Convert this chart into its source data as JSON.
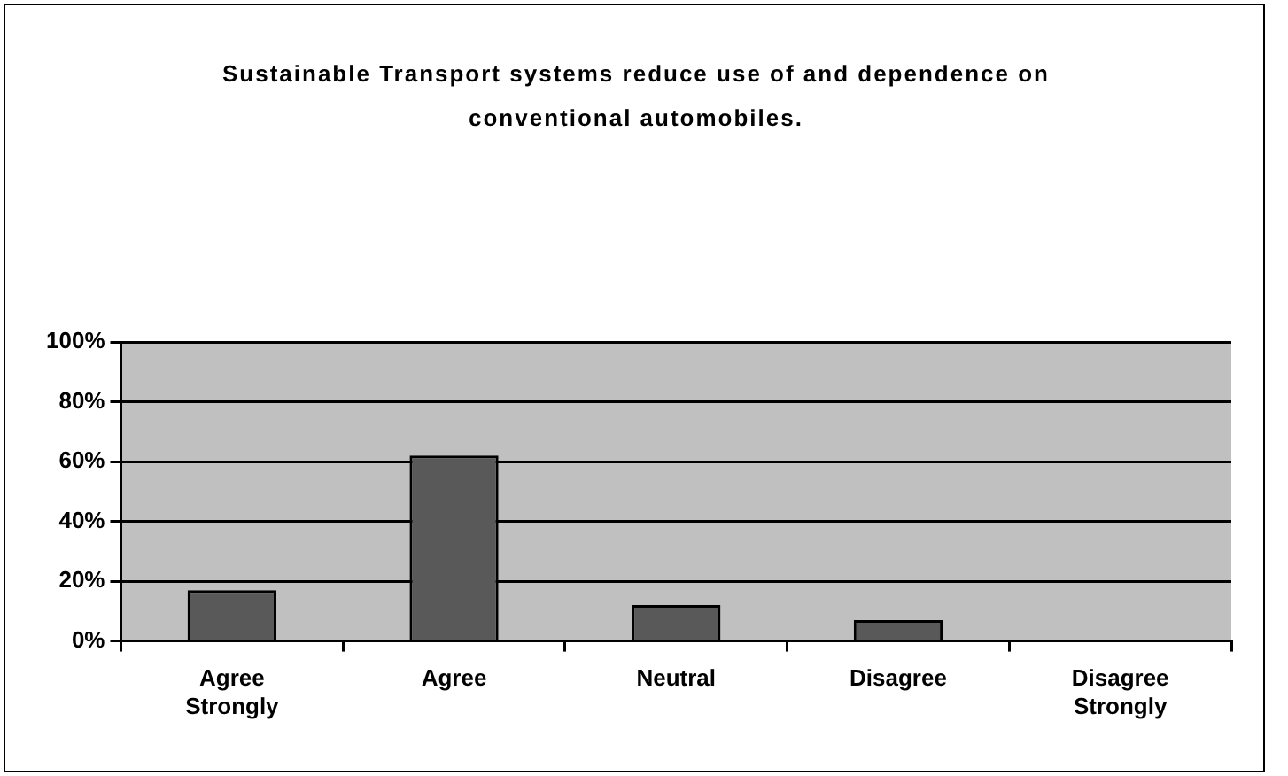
{
  "chart_data": {
    "type": "bar",
    "title": "Sustainable Transport systems reduce use of and dependence on conventional automobiles.",
    "categories": [
      "Agree Strongly",
      "Agree",
      "Neutral",
      "Disagree",
      "Disagree Strongly"
    ],
    "values": [
      17,
      62,
      12,
      7,
      0
    ],
    "color": "#595959",
    "ylim": [
      0,
      100
    ],
    "yticks": [
      {
        "value": 0,
        "label": "0%"
      },
      {
        "value": 20,
        "label": "20%"
      },
      {
        "value": 40,
        "label": "40%"
      },
      {
        "value": 60,
        "label": "60%"
      },
      {
        "value": 80,
        "label": "80%"
      },
      {
        "value": 100,
        "label": "100%"
      }
    ],
    "grid": "y",
    "legend": false
  }
}
